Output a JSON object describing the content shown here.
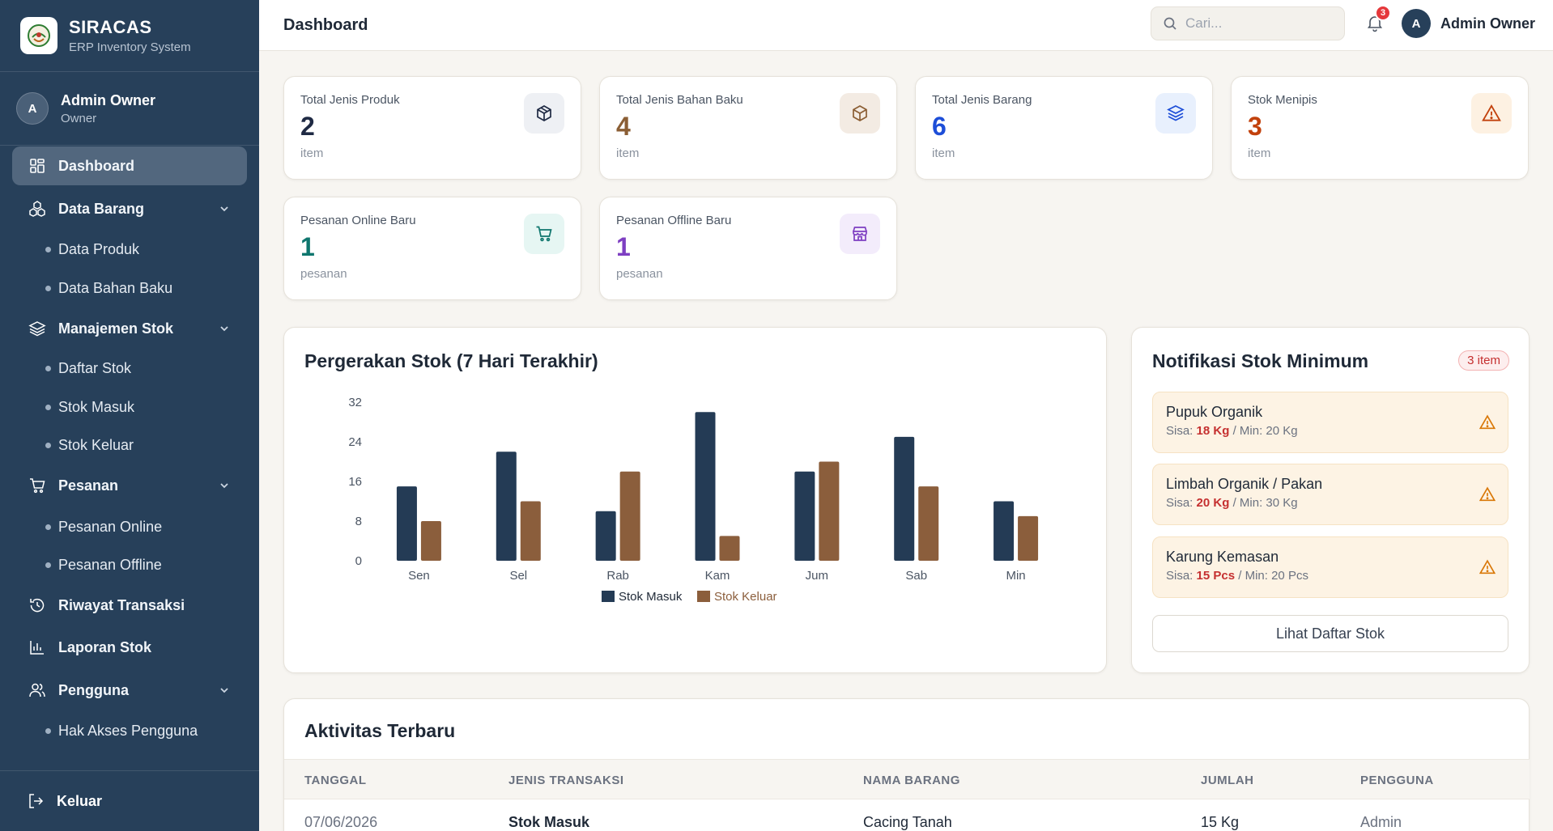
{
  "brand": {
    "name": "SIRACAS",
    "subtitle": "ERP Inventory System"
  },
  "sidebar_user": {
    "initial": "A",
    "name": "Admin Owner",
    "role": "Owner"
  },
  "nav": {
    "dashboard": "Dashboard",
    "data_barang": "Data Barang",
    "data_produk": "Data Produk",
    "data_bahan_baku": "Data Bahan Baku",
    "manajemen_stok": "Manajemen Stok",
    "daftar_stok": "Daftar Stok",
    "stok_masuk": "Stok Masuk",
    "stok_keluar": "Stok Keluar",
    "pesanan": "Pesanan",
    "pesanan_online": "Pesanan Online",
    "pesanan_offline": "Pesanan Offline",
    "riwayat_transaksi": "Riwayat Transaksi",
    "laporan_stok": "Laporan Stok",
    "pengguna": "Pengguna",
    "hak_akses": "Hak Akses Pengguna",
    "keluar": "Keluar"
  },
  "header": {
    "title": "Dashboard",
    "search_placeholder": "Cari...",
    "notif_count": "3",
    "user_initial": "A",
    "user_name": "Admin Owner"
  },
  "stats": [
    {
      "label": "Total Jenis Produk",
      "value": "2",
      "unit": "item",
      "color": "#1f2a44",
      "icon": "box-icon"
    },
    {
      "label": "Total Jenis Bahan Baku",
      "value": "4",
      "unit": "item",
      "color": "#8b5e34",
      "icon": "box-icon"
    },
    {
      "label": "Total Jenis Barang",
      "value": "6",
      "unit": "item",
      "color": "#1d4ed8",
      "icon": "layers-icon"
    },
    {
      "label": "Stok Menipis",
      "value": "3",
      "unit": "item",
      "color": "#c2410c",
      "icon": "warning-icon"
    },
    {
      "label": "Pesanan Online Baru",
      "value": "1",
      "unit": "pesanan",
      "color": "#0f766e",
      "icon": "cart-icon"
    },
    {
      "label": "Pesanan Offline Baru",
      "value": "1",
      "unit": "pesanan",
      "color": "#7e3fc2",
      "icon": "store-icon"
    }
  ],
  "chart_data": {
    "type": "bar",
    "title": "Pergerakan Stok (7 Hari Terakhir)",
    "categories": [
      "Sen",
      "Sel",
      "Rab",
      "Kam",
      "Jum",
      "Sab",
      "Min"
    ],
    "series": [
      {
        "name": "Stok Masuk",
        "color": "#243b55",
        "values": [
          15,
          22,
          10,
          30,
          18,
          25,
          12
        ]
      },
      {
        "name": "Stok Keluar",
        "color": "#8b5e3c",
        "values": [
          8,
          12,
          18,
          5,
          20,
          15,
          9
        ]
      }
    ],
    "yticks": [
      "0",
      "8",
      "16",
      "24",
      "32"
    ],
    "ylim": [
      0,
      32
    ],
    "legend_position": "bottom-center",
    "grid": false
  },
  "notifications": {
    "title": "Notifikasi Stok Minimum",
    "badge": "3 item",
    "sisa_label": "Sisa:",
    "items": [
      {
        "name": "Pupuk Organik",
        "remain": "18 Kg",
        "min": "/ Min: 20 Kg"
      },
      {
        "name": "Limbah Organik / Pakan",
        "remain": "20 Kg",
        "min": "/ Min: 30 Kg"
      },
      {
        "name": "Karung Kemasan",
        "remain": "15 Pcs",
        "min": "/ Min: 20 Pcs"
      }
    ],
    "button": "Lihat Daftar Stok"
  },
  "activity": {
    "title": "Aktivitas Terbaru",
    "columns": [
      "TANGGAL",
      "JENIS TRANSAKSI",
      "NAMA BARANG",
      "JUMLAH",
      "PENGGUNA"
    ],
    "rows": [
      [
        "07/06/2026",
        "Stok Masuk",
        "Cacing Tanah",
        "15 Kg",
        "Admin"
      ]
    ]
  }
}
